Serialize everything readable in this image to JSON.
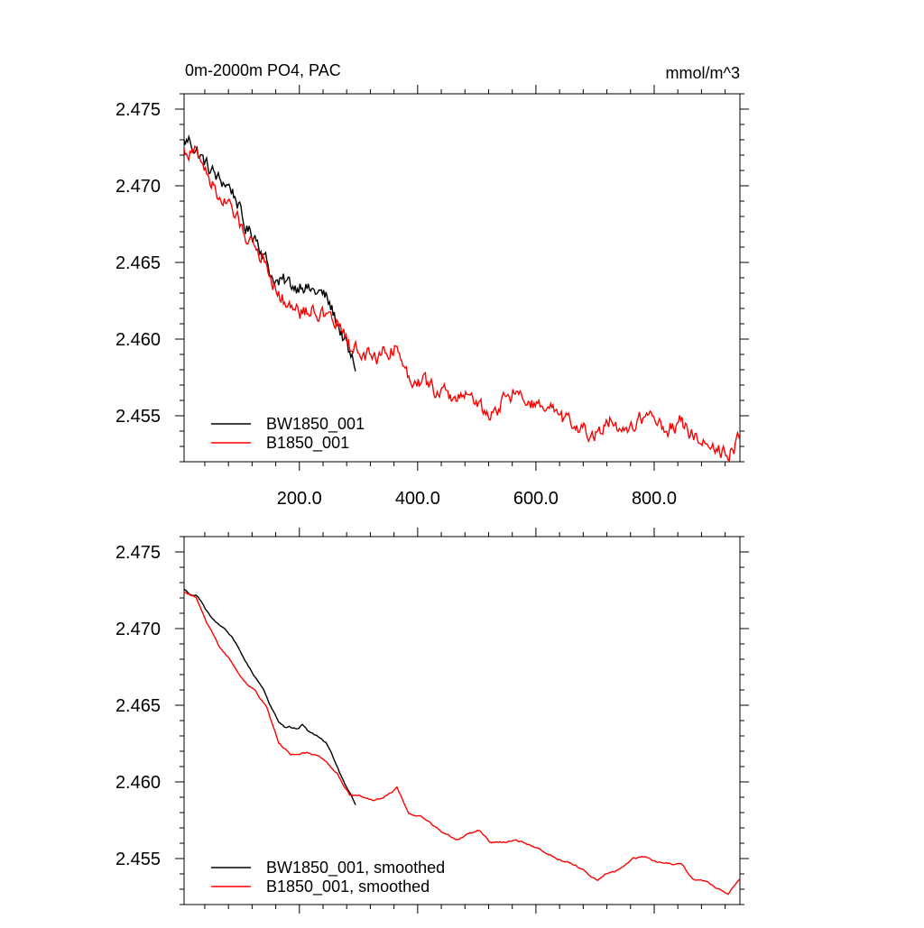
{
  "figure": {
    "title_left": "0m-2000m PO4, PAC",
    "units": "mmol/m^3"
  },
  "chart_data": [
    {
      "type": "line",
      "panel": "top",
      "title": "0m-2000m PO4, PAC",
      "xlim": [
        5,
        945
      ],
      "ylim": [
        2.452,
        2.476
      ],
      "x_ticks": [
        "200.0",
        "400.0",
        "600.0",
        "800.0"
      ],
      "y_ticks": [
        "2.475",
        "2.470",
        "2.465",
        "2.460",
        "2.455"
      ],
      "legend_position": "bottom-left",
      "series": [
        {
          "name": "BW1850_001",
          "color": "#000000",
          "x": [
            5,
            15,
            25,
            35,
            45,
            55,
            65,
            75,
            85,
            95,
            105,
            115,
            125,
            135,
            145,
            155,
            165,
            175,
            185,
            195,
            205,
            215,
            225,
            235,
            245,
            255,
            265,
            275,
            285,
            295
          ],
          "y": [
            2.4728,
            2.473,
            2.4723,
            2.4718,
            2.4712,
            2.4708,
            2.4703,
            2.4702,
            2.4698,
            2.469,
            2.4675,
            2.467,
            2.4668,
            2.466,
            2.465,
            2.464,
            2.4636,
            2.4637,
            2.4636,
            2.4634,
            2.4638,
            2.4632,
            2.4631,
            2.463,
            2.4627,
            2.4619,
            2.461,
            2.46,
            2.4589,
            2.4582
          ]
        },
        {
          "name": "B1850_001",
          "color": "#ff0000",
          "x": [
            5,
            25,
            45,
            65,
            85,
            105,
            125,
            145,
            165,
            185,
            205,
            225,
            245,
            265,
            285,
            305,
            325,
            345,
            365,
            385,
            405,
            425,
            445,
            465,
            485,
            505,
            525,
            545,
            565,
            585,
            605,
            625,
            645,
            665,
            685,
            705,
            725,
            745,
            765,
            785,
            805,
            825,
            845,
            865,
            885,
            905,
            925,
            945
          ],
          "y": [
            2.4722,
            2.4722,
            2.4708,
            2.4692,
            2.4685,
            2.467,
            2.4662,
            2.465,
            2.4628,
            2.4622,
            2.4618,
            2.462,
            2.4613,
            2.461,
            2.4597,
            2.459,
            2.4588,
            2.4592,
            2.4595,
            2.4575,
            2.4574,
            2.4568,
            2.4565,
            2.456,
            2.4567,
            2.4555,
            2.455,
            2.456,
            2.4565,
            2.456,
            2.4555,
            2.4553,
            2.4547,
            2.4542,
            2.454,
            2.4537,
            2.4546,
            2.4535,
            2.4545,
            2.4551,
            2.4547,
            2.4542,
            2.4546,
            2.4538,
            2.4535,
            2.4528,
            2.4527,
            2.4535
          ]
        }
      ]
    },
    {
      "type": "line",
      "panel": "bottom",
      "xlim": [
        5,
        945
      ],
      "ylim": [
        2.452,
        2.476
      ],
      "y_ticks": [
        "2.475",
        "2.470",
        "2.465",
        "2.460",
        "2.455"
      ],
      "legend_position": "bottom-left",
      "series": [
        {
          "name": "BW1850_001, smoothed",
          "color": "#000000",
          "x": [
            5,
            15,
            25,
            35,
            45,
            55,
            65,
            75,
            85,
            95,
            105,
            115,
            125,
            135,
            145,
            155,
            165,
            175,
            185,
            195,
            205,
            215,
            225,
            235,
            245,
            255,
            265,
            275,
            285,
            295
          ],
          "y": [
            2.4726,
            2.4722,
            2.4721,
            2.4716,
            2.471,
            2.4706,
            2.4702,
            2.47,
            2.4695,
            2.4689,
            2.4682,
            2.4675,
            2.4669,
            2.4664,
            2.4656,
            2.4647,
            2.4638,
            2.4635,
            2.4635,
            2.4634,
            2.4637,
            2.4632,
            2.463,
            2.4628,
            2.4625,
            2.4618,
            2.461,
            2.46,
            2.4592,
            2.4585
          ]
        },
        {
          "name": "B1850_001, smoothed",
          "color": "#ff0000",
          "x": [
            5,
            25,
            45,
            65,
            85,
            105,
            125,
            145,
            165,
            185,
            205,
            225,
            245,
            265,
            285,
            305,
            325,
            345,
            365,
            385,
            405,
            425,
            445,
            465,
            485,
            505,
            525,
            545,
            565,
            585,
            605,
            625,
            645,
            665,
            685,
            705,
            725,
            745,
            765,
            785,
            805,
            825,
            845,
            865,
            885,
            905,
            925,
            945
          ],
          "y": [
            2.4724,
            2.472,
            2.4703,
            2.4688,
            2.4679,
            2.4668,
            2.466,
            2.4648,
            2.4625,
            2.4618,
            2.462,
            2.4618,
            2.4613,
            2.4605,
            2.4592,
            2.459,
            2.4587,
            2.4591,
            2.4596,
            2.458,
            2.4578,
            2.4572,
            2.4567,
            2.4562,
            2.4566,
            2.4568,
            2.456,
            2.4561,
            2.4563,
            2.456,
            2.4557,
            2.4553,
            2.4548,
            2.4546,
            2.4542,
            2.4536,
            2.4542,
            2.4544,
            2.4549,
            2.4551,
            2.4547,
            2.4546,
            2.4546,
            2.4537,
            2.4536,
            2.4532,
            2.4527,
            2.4536
          ]
        }
      ]
    }
  ]
}
